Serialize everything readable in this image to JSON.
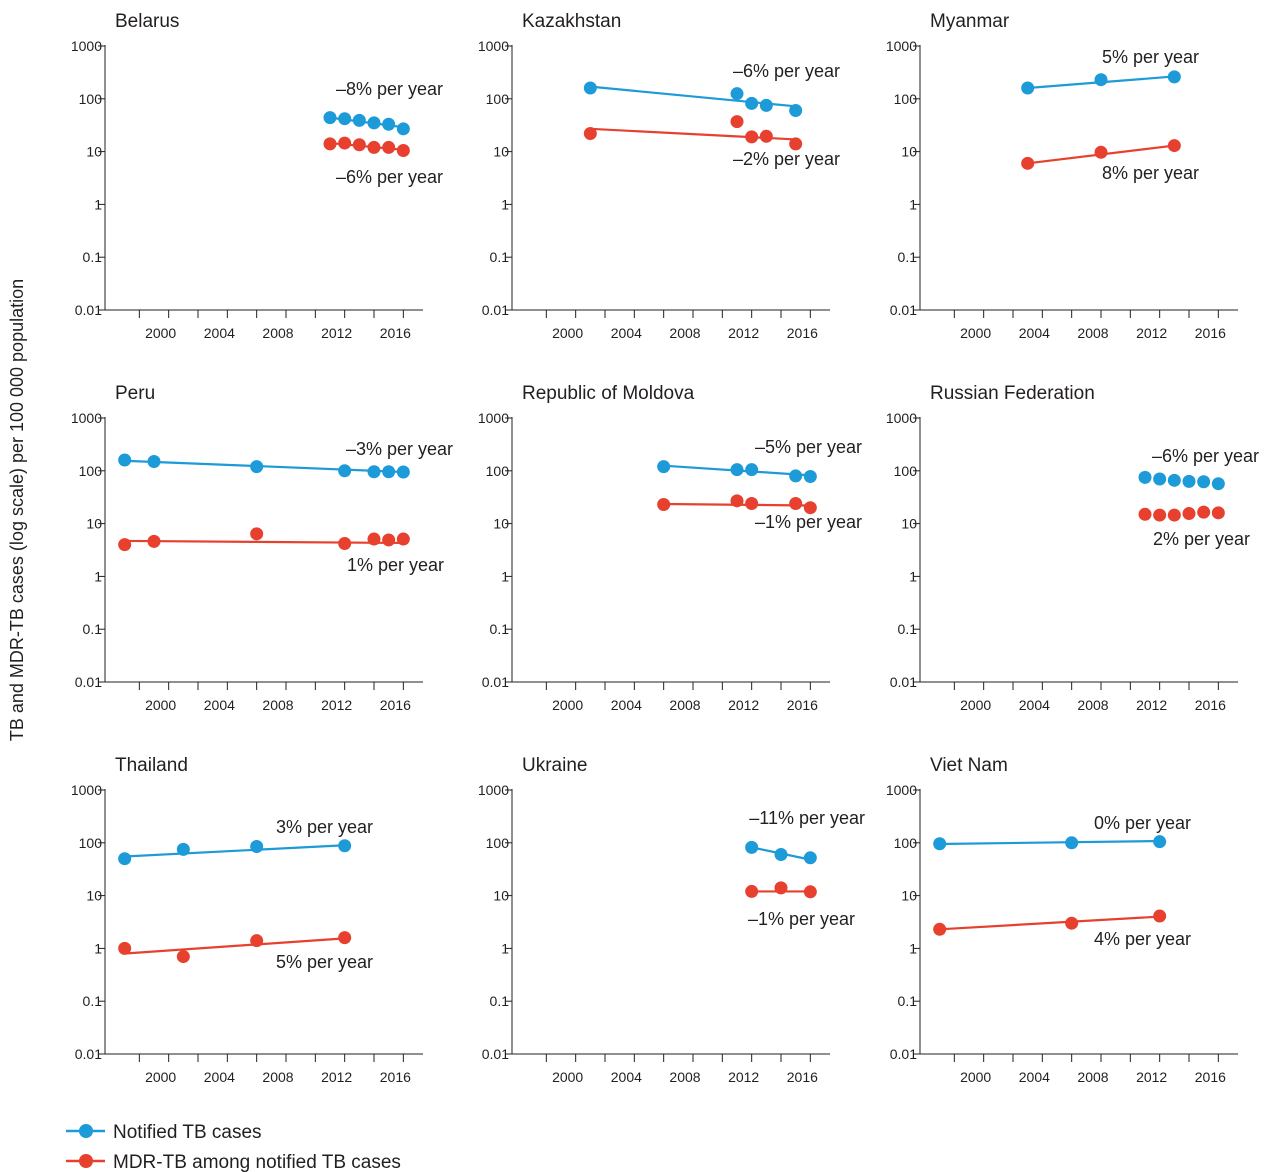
{
  "y_axis_label": "TB and MDR-TB cases (log scale) per 100 000 population",
  "y_tick_labels": [
    "0.01",
    "0.1",
    "1",
    "10",
    "100",
    "1000"
  ],
  "x_tick_labels": [
    "2000",
    "2004",
    "2008",
    "2012",
    "2016"
  ],
  "legend": [
    {
      "label": "Notified TB cases",
      "color": "#1d9ad8"
    },
    {
      "label": "MDR-TB among notified TB cases",
      "color": "#e8402e"
    }
  ],
  "colors": {
    "tb": "#1d9ad8",
    "mdr": "#e8402e",
    "axis": "#231f20"
  },
  "chart_data": [
    {
      "type": "line",
      "title": "Belarus",
      "yscale": "log",
      "ylim": [
        0.01,
        1000
      ],
      "xlim": [
        1996,
        2017
      ],
      "series": [
        {
          "name": "Notified TB cases",
          "x": [
            2011,
            2012,
            2013,
            2014,
            2015,
            2016
          ],
          "values": [
            44,
            42,
            39,
            35,
            33,
            27
          ],
          "trend": [
            [
              2011,
              44
            ],
            [
              2016,
              29
            ]
          ],
          "annotation": "–8% per year"
        },
        {
          "name": "MDR-TB among notified TB cases",
          "x": [
            2011,
            2012,
            2013,
            2014,
            2015,
            2016
          ],
          "values": [
            14,
            14.5,
            13.5,
            12,
            12,
            10.5
          ],
          "trend": [
            [
              2011,
              14.5
            ],
            [
              2016,
              10.8
            ]
          ],
          "annotation": "–6% per year"
        }
      ]
    },
    {
      "type": "line",
      "title": "Kazakhstan",
      "yscale": "log",
      "ylim": [
        0.01,
        1000
      ],
      "xlim": [
        1996,
        2017
      ],
      "series": [
        {
          "name": "Notified TB cases",
          "x": [
            2001,
            2011,
            2012,
            2013,
            2015
          ],
          "values": [
            160,
            125,
            82,
            75,
            60
          ],
          "trend": [
            [
              2001,
              170
            ],
            [
              2015,
              72
            ]
          ],
          "annotation": "–6% per year"
        },
        {
          "name": "MDR-TB among notified TB cases",
          "x": [
            2001,
            2011,
            2012,
            2013,
            2015
          ],
          "values": [
            22,
            37,
            19,
            19.5,
            14
          ],
          "trend": [
            [
              2001,
              27
            ],
            [
              2015,
              17
            ]
          ],
          "annotation": "–2% per year"
        }
      ]
    },
    {
      "type": "line",
      "title": "Myanmar",
      "yscale": "log",
      "ylim": [
        0.01,
        1000
      ],
      "xlim": [
        1996,
        2017
      ],
      "series": [
        {
          "name": "Notified TB cases",
          "x": [
            2003,
            2008,
            2013
          ],
          "values": [
            160,
            230,
            260
          ],
          "trend": [
            [
              2003,
              160
            ],
            [
              2013,
              265
            ]
          ],
          "annotation": "5% per year"
        },
        {
          "name": "MDR-TB among notified TB cases",
          "x": [
            2003,
            2008,
            2013
          ],
          "values": [
            6,
            9.7,
            13
          ],
          "trend": [
            [
              2003,
              6
            ],
            [
              2013,
              13
            ]
          ],
          "annotation": "8% per year"
        }
      ]
    },
    {
      "type": "line",
      "title": "Peru",
      "yscale": "log",
      "ylim": [
        0.01,
        1000
      ],
      "xlim": [
        1996,
        2017
      ],
      "series": [
        {
          "name": "Notified TB cases",
          "x": [
            1997,
            1999,
            2006,
            2012,
            2014,
            2015,
            2016
          ],
          "values": [
            160,
            150,
            120,
            100,
            96,
            96,
            95
          ],
          "trend": [
            [
              1997,
              155
            ],
            [
              2016,
              95
            ]
          ],
          "annotation": "–3% per year"
        },
        {
          "name": "MDR-TB among notified TB cases",
          "x": [
            1997,
            1999,
            2006,
            2012,
            2014,
            2015,
            2016
          ],
          "values": [
            4,
            4.6,
            6.4,
            4.2,
            5.1,
            4.9,
            5.1
          ],
          "trend": [
            [
              1997,
              4.7
            ],
            [
              2016,
              4.3
            ]
          ],
          "annotation": "1% per year"
        }
      ]
    },
    {
      "type": "line",
      "title": "Republic of Moldova",
      "yscale": "log",
      "ylim": [
        0.01,
        1000
      ],
      "xlim": [
        1996,
        2017
      ],
      "series": [
        {
          "name": "Notified TB cases",
          "x": [
            2006,
            2011,
            2012,
            2015,
            2016
          ],
          "values": [
            120,
            105,
            105,
            80,
            78
          ],
          "trend": [
            [
              2006,
              125
            ],
            [
              2016,
              82
            ]
          ],
          "annotation": "–5% per year"
        },
        {
          "name": "MDR-TB among notified TB cases",
          "x": [
            2006,
            2011,
            2012,
            2015,
            2016
          ],
          "values": [
            23,
            27,
            24,
            24,
            20
          ],
          "trend": [
            [
              2006,
              23.5
            ],
            [
              2016,
              22
            ]
          ],
          "annotation": "–1% per year"
        }
      ]
    },
    {
      "type": "line",
      "title": "Russian Federation",
      "yscale": "log",
      "ylim": [
        0.01,
        1000
      ],
      "xlim": [
        1996,
        2017
      ],
      "series": [
        {
          "name": "Notified TB cases",
          "x": [
            2011,
            2012,
            2013,
            2014,
            2015,
            2016
          ],
          "values": [
            75,
            70,
            66,
            63,
            62,
            57
          ],
          "trend": null,
          "annotation": "–6% per year"
        },
        {
          "name": "MDR-TB among notified TB cases",
          "x": [
            2011,
            2012,
            2013,
            2014,
            2015,
            2016
          ],
          "values": [
            15,
            14.5,
            14.5,
            15.5,
            16.5,
            16
          ],
          "trend": null,
          "annotation": "2% per year"
        }
      ]
    },
    {
      "type": "line",
      "title": "Thailand",
      "yscale": "log",
      "ylim": [
        0.01,
        1000
      ],
      "xlim": [
        1996,
        2017
      ],
      "series": [
        {
          "name": "Notified TB cases",
          "x": [
            1997,
            2001,
            2006,
            2012
          ],
          "values": [
            50,
            75,
            85,
            88
          ],
          "trend": [
            [
              1997,
              55
            ],
            [
              2012,
              90
            ]
          ],
          "annotation": "3% per year"
        },
        {
          "name": "MDR-TB among notified TB cases",
          "x": [
            1997,
            2001,
            2006,
            2012
          ],
          "values": [
            1.0,
            0.7,
            1.4,
            1.6
          ],
          "trend": [
            [
              1997,
              0.8
            ],
            [
              2012,
              1.55
            ]
          ],
          "annotation": "5% per year"
        }
      ]
    },
    {
      "type": "line",
      "title": "Ukraine",
      "yscale": "log",
      "ylim": [
        0.01,
        1000
      ],
      "xlim": [
        1996,
        2017
      ],
      "series": [
        {
          "name": "Notified TB cases",
          "x": [
            2012,
            2014,
            2016
          ],
          "values": [
            82,
            60,
            52
          ],
          "trend": [
            [
              2012,
              82
            ],
            [
              2016,
              48
            ]
          ],
          "annotation": "–11% per year"
        },
        {
          "name": "MDR-TB among notified TB cases",
          "x": [
            2012,
            2014,
            2016
          ],
          "values": [
            12,
            14,
            11.8
          ],
          "trend": [
            [
              2012,
              12
            ],
            [
              2016,
              12
            ]
          ],
          "annotation": "–1% per year"
        }
      ]
    },
    {
      "type": "line",
      "title": "Viet Nam",
      "yscale": "log",
      "ylim": [
        0.01,
        1000
      ],
      "xlim": [
        1996,
        2017
      ],
      "series": [
        {
          "name": "Notified TB cases",
          "x": [
            1997,
            2006,
            2012
          ],
          "values": [
            96,
            100,
            105
          ],
          "trend": [
            [
              1997,
              95
            ],
            [
              2012,
              108
            ]
          ],
          "annotation": "0% per year"
        },
        {
          "name": "MDR-TB among notified TB cases",
          "x": [
            1997,
            2006,
            2012
          ],
          "values": [
            2.3,
            3.0,
            4.1
          ],
          "trend": [
            [
              1997,
              2.3
            ],
            [
              2012,
              4.0
            ]
          ],
          "annotation": "4% per year"
        }
      ]
    }
  ]
}
